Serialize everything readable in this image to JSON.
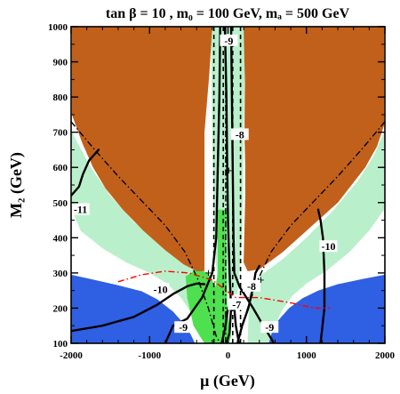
{
  "chart_data": {
    "type": "contour",
    "title": "tan β = 10 ,  m₀ = 100 GeV,  mₐ = 500 GeV",
    "xlabel": "μ (GeV)",
    "ylabel": "M₂ (GeV)",
    "xlim": [
      -2000,
      2000
    ],
    "ylim": [
      100,
      1000
    ],
    "xticks": [
      "-2000",
      "-1000",
      "0",
      "1000",
      "2000"
    ],
    "yticks": [
      "100",
      "200",
      "300",
      "400",
      "500",
      "600",
      "700",
      "800",
      "900",
      "1000"
    ],
    "colors": {
      "excluded_orange": "#c1601a",
      "excluded_blue": "#2f5fe3",
      "mint": "#b9f0cb",
      "green": "#4fe04f",
      "contour": "#000000",
      "red_dashdot": "#ff0000"
    },
    "contour_labels": [
      {
        "text": "-11",
        "x": -1880,
        "y": 475
      },
      {
        "text": "-10",
        "x": -860,
        "y": 248
      },
      {
        "text": "-10",
        "x": 1280,
        "y": 370
      },
      {
        "text": "-9",
        "x": 10,
        "y": 955
      },
      {
        "text": "-9",
        "x": -570,
        "y": 140
      },
      {
        "text": "-9",
        "x": 530,
        "y": 140
      },
      {
        "text": "-8",
        "x": 150,
        "y": 688
      },
      {
        "text": "-8",
        "x": 300,
        "y": 257
      },
      {
        "text": "-7",
        "x": 110,
        "y": 205
      }
    ],
    "regions": {
      "orange_left": [
        [
          -1990,
          1000
        ],
        [
          -1990,
          750
        ],
        [
          -1860,
          670
        ],
        [
          -1720,
          600
        ],
        [
          -1560,
          540
        ],
        [
          -1340,
          480
        ],
        [
          -1080,
          420
        ],
        [
          -800,
          365
        ],
        [
          -570,
          325
        ],
        [
          -400,
          305
        ],
        [
          -300,
          305
        ],
        [
          -300,
          700
        ],
        [
          -240,
          860
        ],
        [
          -200,
          1000
        ]
      ],
      "orange_right": [
        [
          200,
          1000
        ],
        [
          215,
          840
        ],
        [
          210,
          700
        ],
        [
          220,
          600
        ],
        [
          220,
          520
        ],
        [
          200,
          330
        ],
        [
          250,
          305
        ],
        [
          400,
          310
        ],
        [
          700,
          360
        ],
        [
          1050,
          430
        ],
        [
          1400,
          500
        ],
        [
          1750,
          600
        ],
        [
          1900,
          660
        ],
        [
          1990,
          720
        ],
        [
          1990,
          1000
        ]
      ],
      "blue_left": [
        [
          -2000,
          100
        ],
        [
          -2000,
          295
        ],
        [
          -1700,
          280
        ],
        [
          -1400,
          265
        ],
        [
          -1100,
          248
        ],
        [
          -900,
          225
        ],
        [
          -700,
          190
        ],
        [
          -520,
          145
        ],
        [
          -420,
          100
        ]
      ],
      "blue_right": [
        [
          2000,
          100
        ],
        [
          2000,
          295
        ],
        [
          1700,
          282
        ],
        [
          1400,
          268
        ],
        [
          1150,
          250
        ],
        [
          950,
          228
        ],
        [
          780,
          200
        ],
        [
          640,
          165
        ],
        [
          560,
          130
        ],
        [
          520,
          100
        ]
      ],
      "mint_left": [
        [
          -1990,
          700
        ],
        [
          -1990,
          480
        ],
        [
          -1880,
          420
        ],
        [
          -1600,
          370
        ],
        [
          -1300,
          330
        ],
        [
          -1000,
          300
        ],
        [
          -780,
          270
        ],
        [
          -600,
          230
        ],
        [
          -450,
          180
        ],
        [
          -360,
          120
        ],
        [
          -300,
          100
        ],
        [
          -100,
          100
        ],
        [
          -150,
          250
        ],
        [
          -320,
          300
        ],
        [
          -600,
          330
        ],
        [
          -900,
          385
        ],
        [
          -1200,
          445
        ],
        [
          -1500,
          520
        ],
        [
          -1750,
          600
        ]
      ],
      "mint_right": [
        [
          1990,
          700
        ],
        [
          1990,
          480
        ],
        [
          1800,
          420
        ],
        [
          1550,
          360
        ],
        [
          1250,
          305
        ],
        [
          1000,
          270
        ],
        [
          820,
          235
        ],
        [
          680,
          190
        ],
        [
          580,
          140
        ],
        [
          540,
          100
        ],
        [
          250,
          100
        ],
        [
          270,
          240
        ],
        [
          400,
          290
        ],
        [
          700,
          340
        ],
        [
          1000,
          400
        ],
        [
          1350,
          480
        ],
        [
          1650,
          560
        ],
        [
          1850,
          630
        ]
      ],
      "mint_center": [
        [
          -220,
          1000
        ],
        [
          220,
          1000
        ],
        [
          200,
          700
        ],
        [
          180,
          400
        ],
        [
          120,
          240
        ],
        [
          -120,
          240
        ],
        [
          -180,
          400
        ],
        [
          -200,
          700
        ]
      ],
      "green_center": [
        [
          -130,
          480
        ],
        [
          -20,
          480
        ],
        [
          -20,
          300
        ],
        [
          -10,
          200
        ],
        [
          40,
          120
        ],
        [
          10,
          100
        ],
        [
          -300,
          100
        ],
        [
          -440,
          150
        ],
        [
          -520,
          230
        ],
        [
          -540,
          290
        ],
        [
          -400,
          310
        ],
        [
          -250,
          300
        ],
        [
          -160,
          260
        ],
        [
          -130,
          300
        ]
      ]
    },
    "contours": {
      "minus11": [
        [
          -2000,
          520
        ],
        [
          -1900,
          545
        ],
        [
          -1850,
          580
        ],
        [
          -1770,
          620
        ],
        [
          -1650,
          650
        ]
      ],
      "minus10_left": [
        [
          -2000,
          135
        ],
        [
          -1600,
          150
        ],
        [
          -1200,
          175
        ],
        [
          -900,
          210
        ],
        [
          -700,
          240
        ],
        [
          -520,
          262
        ],
        [
          -400,
          270
        ],
        [
          -300,
          268
        ]
      ],
      "minus10_right": [
        [
          1180,
          100
        ],
        [
          1230,
          200
        ],
        [
          1230,
          300
        ],
        [
          1210,
          400
        ],
        [
          1180,
          450
        ],
        [
          1150,
          480
        ]
      ],
      "minus9_left": [
        [
          -100,
          1000
        ],
        [
          -110,
          800
        ],
        [
          -130,
          600
        ],
        [
          -150,
          400
        ],
        [
          -200,
          300
        ],
        [
          -330,
          230
        ],
        [
          -520,
          170
        ],
        [
          -700,
          150
        ],
        [
          -800,
          100
        ]
      ],
      "minus9_right": [
        [
          40,
          1000
        ],
        [
          50,
          800
        ],
        [
          60,
          600
        ],
        [
          70,
          400
        ],
        [
          80,
          300
        ],
        [
          150,
          260
        ],
        [
          320,
          200
        ],
        [
          450,
          150
        ],
        [
          560,
          110
        ],
        [
          580,
          100
        ]
      ],
      "minus8_center": [
        [
          -40,
          1000
        ],
        [
          -20,
          800
        ],
        [
          -10,
          600
        ],
        [
          0,
          450
        ],
        [
          20,
          300
        ],
        [
          40,
          200
        ],
        [
          20,
          130
        ],
        [
          -20,
          100
        ]
      ],
      "minus8_right": [
        [
          120,
          100
        ],
        [
          180,
          150
        ],
        [
          260,
          200
        ],
        [
          300,
          240
        ],
        [
          330,
          270
        ],
        [
          350,
          300
        ],
        [
          400,
          320
        ]
      ],
      "minus7": [
        [
          -80,
          100
        ],
        [
          -40,
          140
        ],
        [
          -20,
          170
        ],
        [
          0,
          200
        ],
        [
          40,
          220
        ],
        [
          80,
          200
        ],
        [
          100,
          150
        ],
        [
          140,
          100
        ]
      ]
    },
    "dashed_vertical": {
      "left": [
        [
          -180,
          100
        ],
        [
          -180,
          1000
        ]
      ],
      "right": [
        [
          160,
          100
        ],
        [
          160,
          1000
        ]
      ],
      "center_left": [
        [
          -60,
          100
        ],
        [
          -60,
          1000
        ]
      ],
      "center_right": [
        [
          60,
          100
        ],
        [
          60,
          1000
        ]
      ]
    },
    "dashdot_lines": {
      "left_wing": [
        [
          -2000,
          730
        ],
        [
          -1700,
          650
        ],
        [
          -1400,
          575
        ],
        [
          -1100,
          505
        ],
        [
          -800,
          435
        ],
        [
          -550,
          360
        ],
        [
          -380,
          280
        ],
        [
          -250,
          200
        ],
        [
          -150,
          120
        ],
        [
          -100,
          100
        ]
      ],
      "right_wing": [
        [
          2000,
          730
        ],
        [
          1700,
          650
        ],
        [
          1400,
          575
        ],
        [
          1100,
          505
        ],
        [
          800,
          435
        ],
        [
          550,
          360
        ],
        [
          380,
          280
        ],
        [
          250,
          200
        ],
        [
          150,
          120
        ],
        [
          100,
          100
        ]
      ],
      "center": [
        [
          -30,
          100
        ],
        [
          -30,
          1000
        ]
      ]
    },
    "red_dashdot": [
      [
        -1400,
        275
      ],
      [
        -1100,
        295
      ],
      [
        -800,
        305
      ],
      [
        -500,
        300
      ],
      [
        -200,
        280
      ],
      [
        100,
        230
      ],
      [
        400,
        230
      ],
      [
        800,
        215
      ],
      [
        1100,
        200
      ],
      [
        1300,
        200
      ]
    ],
    "markers": [
      {
        "symbol": "+",
        "x": 10,
        "y": 590
      },
      {
        "symbol": "+",
        "x": -250,
        "y": 300
      },
      {
        "symbol": "+",
        "x": 420,
        "y": 280
      }
    ]
  }
}
